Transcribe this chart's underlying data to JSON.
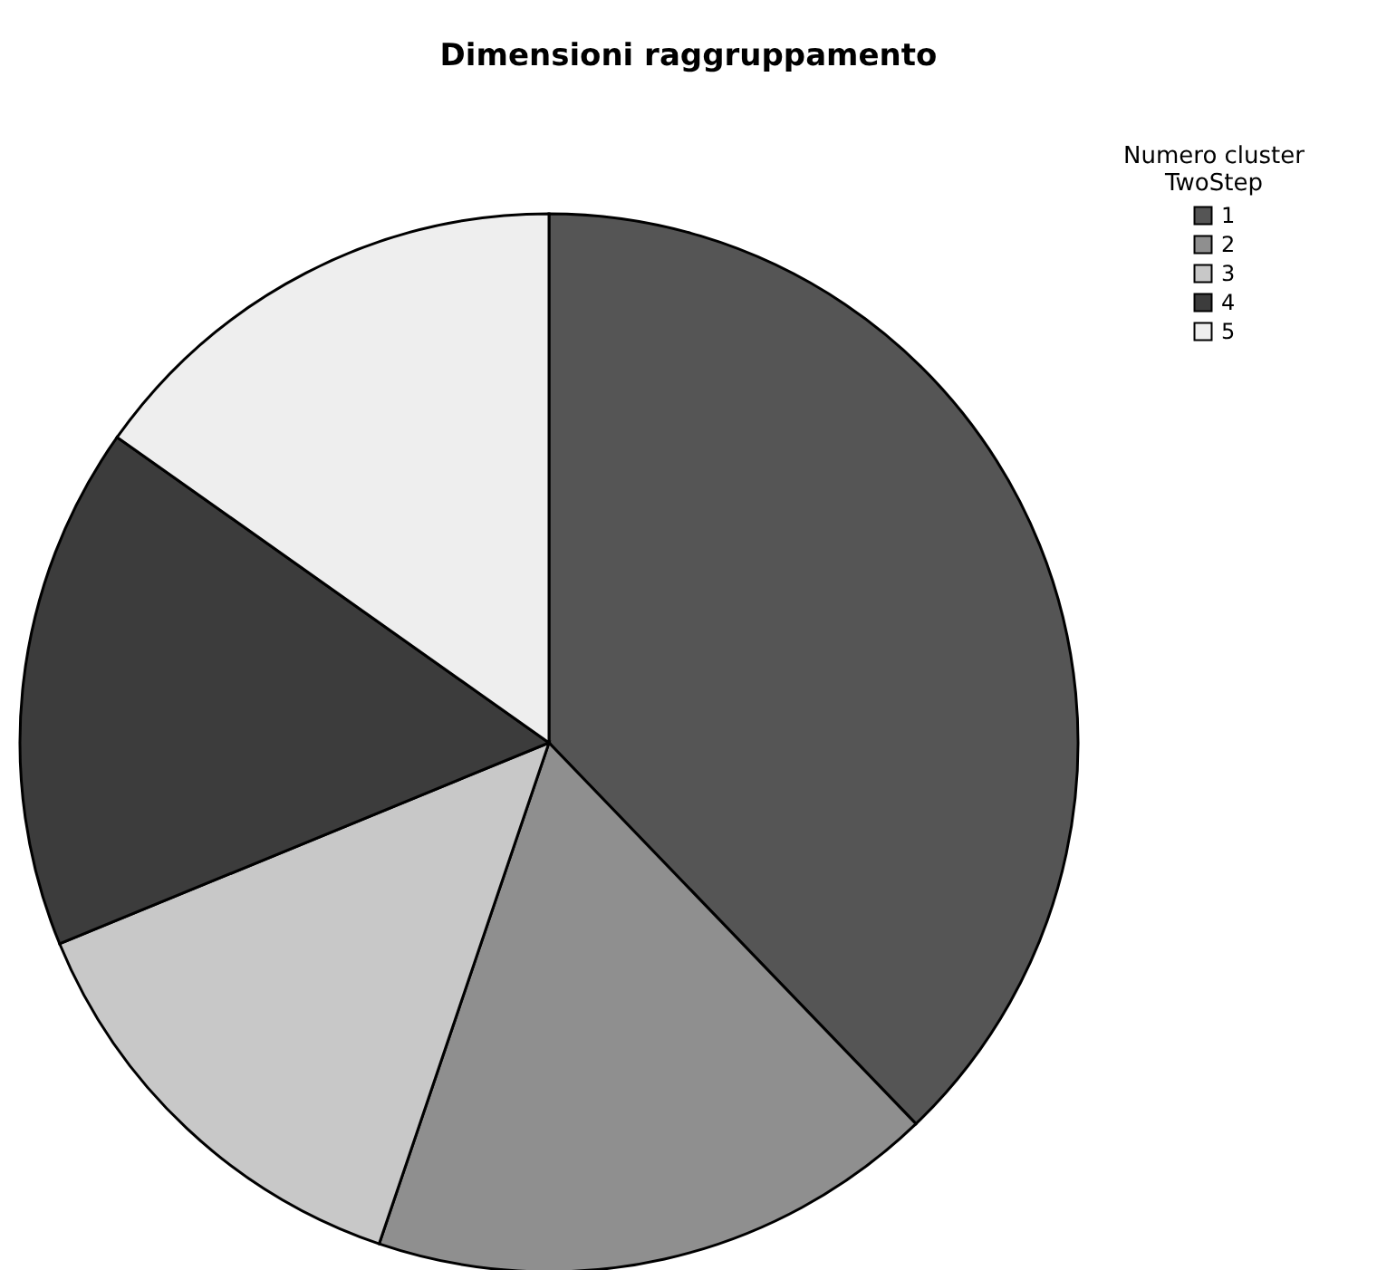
{
  "chart_data": {
    "type": "pie",
    "title": "Dimensioni raggruppamento",
    "legend_title": "Numero cluster\nTwoStep",
    "categories": [
      "1",
      "2",
      "3",
      "4",
      "5"
    ],
    "values": [
      37.8,
      17.4,
      13.6,
      16.0,
      15.2
    ],
    "colors": [
      "#555555",
      "#8f8f8f",
      "#c8c8c8",
      "#3c3c3c",
      "#eeeeee"
    ],
    "legend": "top right"
  }
}
